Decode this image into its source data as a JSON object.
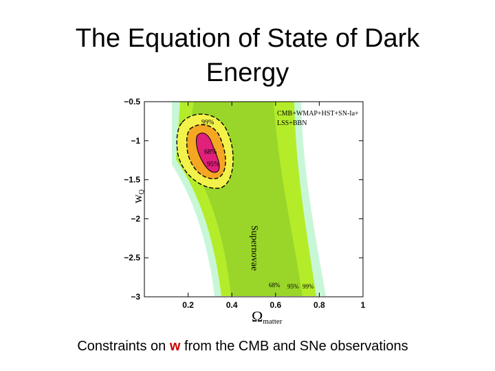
{
  "slide": {
    "title": [
      "The Equation of State of Dark",
      "Energy"
    ],
    "caption": {
      "before": "Constraints on ",
      "highlight": "w",
      "after": " from the CMB and SNe observations"
    }
  },
  "figure": {
    "xlabel": "Ω",
    "xlabel_sub": "matter",
    "ylabel": "w",
    "ylabel_sub": "Q",
    "xlim": [
      0,
      1
    ],
    "ylim": [
      -3,
      -0.5
    ],
    "xticks": [
      0.2,
      0.4,
      0.6,
      0.8,
      1
    ],
    "yticks": [
      {
        "value": -0.5,
        "label": "−0.5"
      },
      {
        "value": -1,
        "label": "−1"
      },
      {
        "value": -1.5,
        "label": "−1.5"
      },
      {
        "value": -2,
        "label": "−2"
      },
      {
        "value": -2.5,
        "label": "−2.5"
      },
      {
        "value": -3,
        "label": "−3"
      }
    ],
    "legend": [
      "CMB+WMAP+HST+SN-Ia+",
      "LSS+BBN"
    ],
    "contour_labels": [
      "99%",
      "68%",
      "95%"
    ],
    "band_label": "Supernovae",
    "band_levels": [
      "68%",
      "95%",
      "99%"
    ]
  }
}
